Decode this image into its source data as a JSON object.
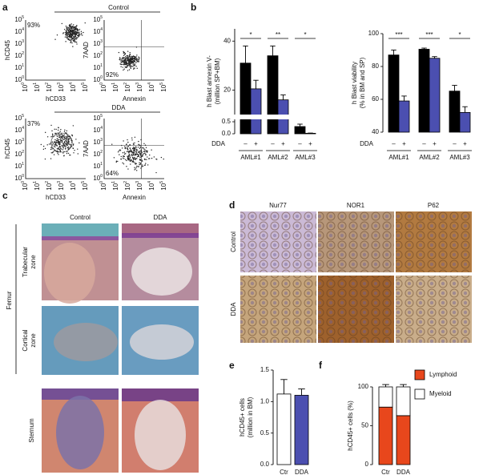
{
  "panel_labels": {
    "a": "a",
    "c": "c",
    "d": "d"
  },
  "flow": {
    "groups": [
      "Control",
      "DDA"
    ],
    "tick_base": "10",
    "tick_exponents": [
      0,
      1,
      2,
      3,
      4,
      5
    ],
    "plots": [
      {
        "xlabel": "hCD33",
        "ylabel": "hCD45",
        "percent": "93%"
      },
      {
        "xlabel": "Annexin",
        "ylabel": "7AAD",
        "percent": "92%"
      },
      {
        "xlabel": "hCD33",
        "ylabel": "hCD45",
        "percent": "37%"
      },
      {
        "xlabel": "Annexin",
        "ylabel": "7AAD",
        "percent": "64%"
      }
    ]
  },
  "histology": {
    "columns": [
      "Control",
      "DDA"
    ],
    "group": "Femur",
    "rows": [
      [
        "Trabecular",
        "zone"
      ],
      [
        "Cortical",
        "zone"
      ],
      [
        "Sternum"
      ]
    ]
  },
  "ihc": {
    "columns": [
      "Nur77",
      "NOR1",
      "P62"
    ],
    "rows": [
      "Control",
      "DDA"
    ]
  },
  "chart_data": [
    {
      "type": "bar",
      "panel_label": "b",
      "ylabel": [
        "h Blast annexin V-",
        "(million SP+BM)"
      ],
      "categories": [
        "AML#1",
        "AML#2",
        "AML#3"
      ],
      "condition_title": "DDA",
      "condition_labels": [
        "–",
        "+"
      ],
      "axis_segments": [
        {
          "ylim": [
            0,
            0.6
          ],
          "yticks": [
            {
              "value": 0,
              "label": "0.0"
            },
            0.5
          ]
        },
        {
          "ylim": [
            10,
            45
          ],
          "yticks": [
            20,
            40
          ]
        }
      ],
      "series": [
        {
          "color": "#000000",
          "values": [
            31,
            34,
            0.3
          ],
          "errors": [
            7,
            4,
            0.1
          ]
        },
        {
          "color": "#4b4fb0",
          "values": [
            20.5,
            16,
            0.02
          ],
          "errors": [
            3.5,
            2,
            0.01
          ]
        }
      ],
      "significance": [
        "*",
        "**",
        "*"
      ]
    },
    {
      "type": "bar",
      "panel_label": "",
      "ylabel": [
        "h Blast viability",
        "(% in BM and SP)"
      ],
      "categories": [
        "AML#1",
        "AML#2",
        "AML#3"
      ],
      "condition_title": "DDA",
      "condition_labels": [
        "–",
        "+"
      ],
      "ylim": [
        40,
        100
      ],
      "yticks": [
        40,
        60,
        80,
        100
      ],
      "series": [
        {
          "color": "#000000",
          "values": [
            87,
            90.5,
            65
          ],
          "errors": [
            3,
            0.7,
            3.5
          ]
        },
        {
          "color": "#4b4fb0",
          "values": [
            59,
            85,
            52
          ],
          "errors": [
            3,
            1,
            3.5
          ]
        }
      ],
      "significance": [
        "***",
        "***",
        "*"
      ]
    },
    {
      "type": "bar",
      "panel_label": "e",
      "ylabel": [
        "hCD45+ cells",
        "(million in BM)"
      ],
      "categories": [
        "Ctr",
        "DDA"
      ],
      "ylim": [
        0,
        1.5
      ],
      "yticks": [
        {
          "value": 0,
          "label": "0.0"
        },
        0.5,
        {
          "value": 1,
          "label": "1.0"
        },
        1.5
      ],
      "series": [
        {
          "colors": [
            "#ffffff",
            "#4b4fb0"
          ],
          "values": [
            1.12,
            1.1
          ],
          "errors": [
            0.23,
            0.1
          ]
        }
      ]
    },
    {
      "type": "stacked_bar",
      "panel_label": "f",
      "ylabel": [
        "hCD45+ cells (%)"
      ],
      "categories": [
        "Ctr",
        "DDA"
      ],
      "ylim": [
        0,
        100
      ],
      "yticks": [
        0,
        50,
        100
      ],
      "series": [
        {
          "name": "Lymphoid",
          "color": "#e8471c",
          "values": [
            74,
            63
          ],
          "errors": [
            3,
            3
          ]
        },
        {
          "name": "Myeloid",
          "color": "#ffffff",
          "values": [
            26,
            37
          ],
          "errors": [
            3,
            3
          ]
        }
      ]
    }
  ]
}
